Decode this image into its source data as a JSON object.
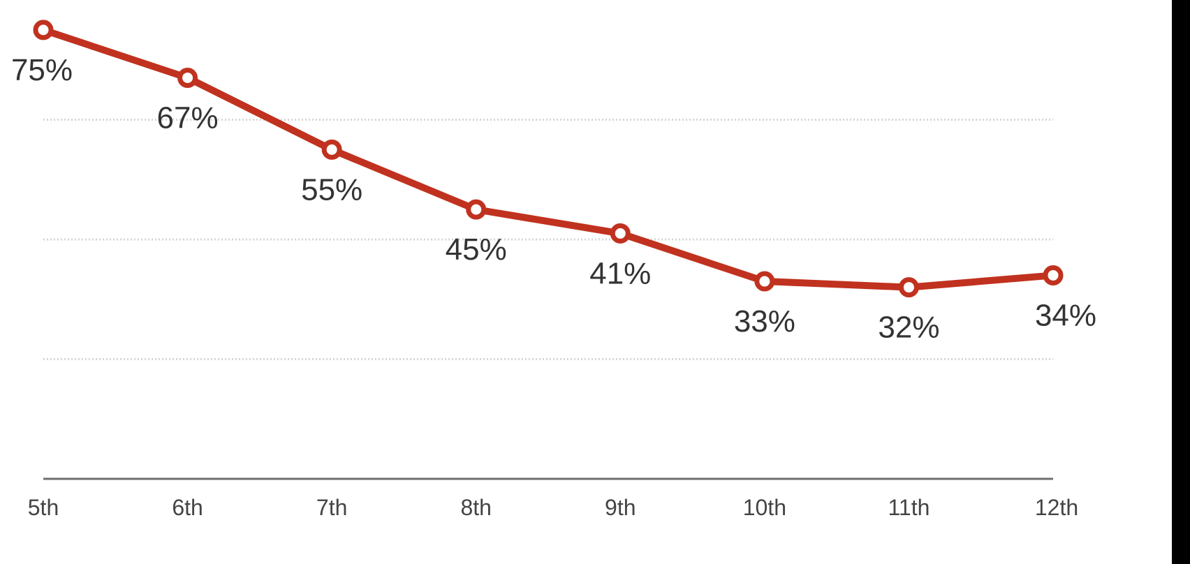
{
  "chart_data": {
    "type": "line",
    "categories": [
      "5th",
      "6th",
      "7th",
      "8th",
      "9th",
      "10th",
      "11th",
      "12th"
    ],
    "series": [
      {
        "values": [
          75,
          67,
          55,
          45,
          41,
          33,
          32,
          34
        ],
        "labels": [
          "75%",
          "67%",
          "55%",
          "45%",
          "41%",
          "33%",
          "32%",
          "34%"
        ],
        "color": "#c0321f"
      }
    ],
    "ylim": [
      0,
      80
    ],
    "grid": true,
    "legend": "none",
    "title": "",
    "xlabel": "",
    "ylabel": ""
  }
}
